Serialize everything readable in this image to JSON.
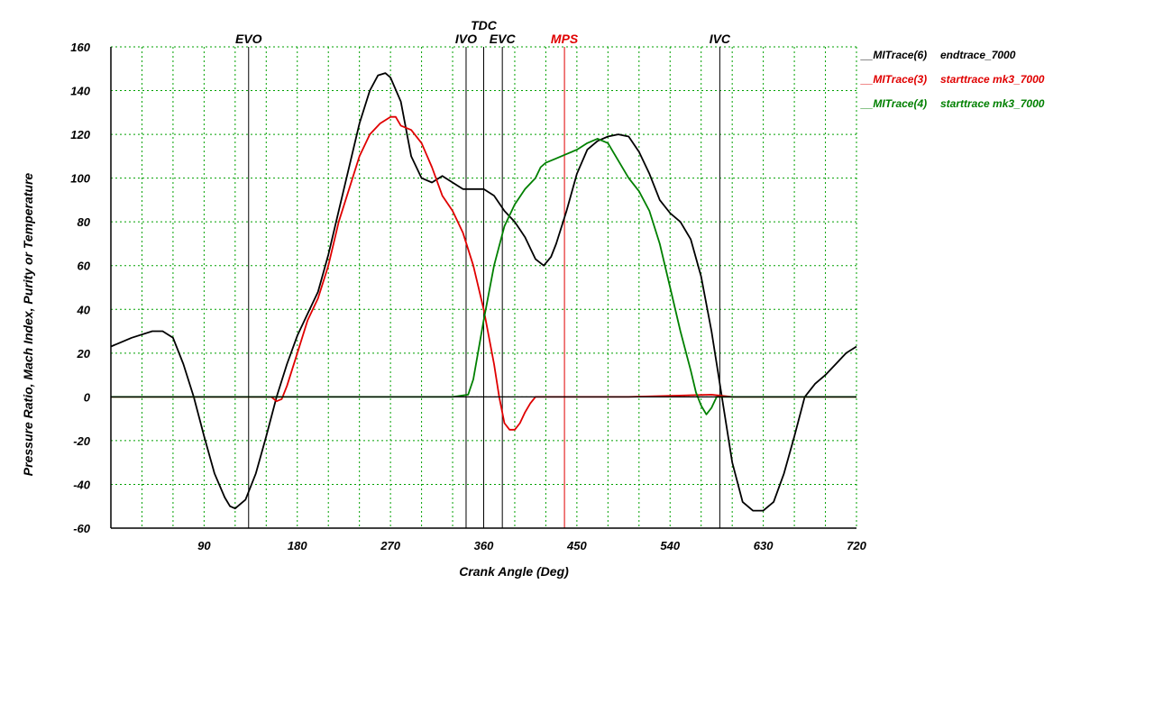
{
  "chart_data": {
    "type": "line",
    "xlabel": "Crank Angle (Deg)",
    "ylabel": "Pressure Ratio, Mach Index, Purity or Temperature",
    "xlim": [
      0,
      720
    ],
    "ylim": [
      -60,
      160
    ],
    "x_ticks": [
      90,
      180,
      270,
      360,
      450,
      540,
      630,
      720
    ],
    "y_ticks": [
      160,
      140,
      120,
      100,
      80,
      60,
      40,
      20,
      0,
      -20,
      -40,
      -60
    ],
    "grid": true,
    "legend_position": "right",
    "markers": [
      {
        "label": "EVO",
        "x": 133,
        "color": "#000000"
      },
      {
        "label": "IVO",
        "x": 343,
        "color": "#000000"
      },
      {
        "label": "TDC",
        "x": 360,
        "color": "#000000"
      },
      {
        "label": "EVC",
        "x": 378,
        "color": "#000000"
      },
      {
        "label": "MPS",
        "x": 438,
        "color": "#e00000"
      },
      {
        "label": "IVC",
        "x": 588,
        "color": "#000000"
      }
    ],
    "series": [
      {
        "name": "__MITrace(6)",
        "description": "endtrace_7000",
        "color": "#000000",
        "x": [
          0,
          20,
          40,
          50,
          60,
          70,
          80,
          90,
          100,
          110,
          115,
          120,
          130,
          140,
          150,
          160,
          170,
          180,
          190,
          200,
          210,
          220,
          230,
          240,
          250,
          258,
          265,
          270,
          280,
          290,
          300,
          310,
          320,
          330,
          340,
          350,
          360,
          370,
          380,
          390,
          400,
          410,
          418,
          425,
          430,
          440,
          450,
          460,
          470,
          480,
          490,
          500,
          510,
          520,
          530,
          540,
          550,
          560,
          570,
          580,
          590,
          600,
          610,
          620,
          630,
          640,
          650,
          660,
          670,
          680,
          690,
          700,
          710,
          720
        ],
        "y": [
          23,
          27,
          30,
          30,
          27,
          15,
          0,
          -18,
          -35,
          -46,
          -50,
          -51,
          -47,
          -35,
          -18,
          0,
          15,
          28,
          38,
          48,
          65,
          85,
          105,
          125,
          140,
          147,
          148,
          146,
          135,
          110,
          100,
          98,
          101,
          98,
          95,
          95,
          95,
          92,
          85,
          80,
          73,
          63,
          60,
          64,
          70,
          85,
          102,
          113,
          117,
          119,
          120,
          119,
          112,
          102,
          90,
          84,
          80,
          72,
          55,
          30,
          0,
          -30,
          -48,
          -52,
          -52,
          -48,
          -35,
          -18,
          0,
          6,
          10,
          15,
          20,
          23
        ]
      },
      {
        "name": "__MITrace(3)",
        "description": "starttrace mk3_7000",
        "color": "#e00000",
        "x": [
          0,
          100,
          155,
          160,
          165,
          170,
          180,
          190,
          200,
          210,
          220,
          230,
          240,
          250,
          260,
          270,
          275,
          280,
          290,
          300,
          310,
          320,
          330,
          340,
          350,
          360,
          370,
          375,
          380,
          385,
          390,
          395,
          400,
          405,
          410,
          430,
          500,
          580,
          600,
          720
        ],
        "y": [
          0,
          0,
          0,
          -2,
          -1,
          5,
          20,
          35,
          45,
          60,
          80,
          95,
          110,
          120,
          125,
          128,
          128,
          124,
          122,
          116,
          105,
          92,
          85,
          75,
          60,
          40,
          15,
          0,
          -12,
          -15,
          -15,
          -12,
          -7,
          -3,
          0,
          0,
          0,
          1,
          0,
          0
        ]
      },
      {
        "name": "__MITrace(4)",
        "description": "starttrace mk3_7000",
        "color": "#008000",
        "x": [
          0,
          330,
          345,
          350,
          360,
          370,
          380,
          390,
          400,
          410,
          415,
          420,
          430,
          440,
          450,
          460,
          470,
          480,
          490,
          500,
          510,
          520,
          530,
          540,
          550,
          560,
          565,
          570,
          575,
          580,
          585,
          590,
          600,
          720
        ],
        "y": [
          0,
          0,
          1,
          8,
          35,
          60,
          78,
          88,
          95,
          100,
          105,
          107,
          109,
          111,
          113,
          116,
          118,
          116,
          108,
          100,
          94,
          85,
          70,
          50,
          30,
          12,
          2,
          -4,
          -8,
          -5,
          0,
          0,
          0,
          0
        ]
      }
    ]
  }
}
